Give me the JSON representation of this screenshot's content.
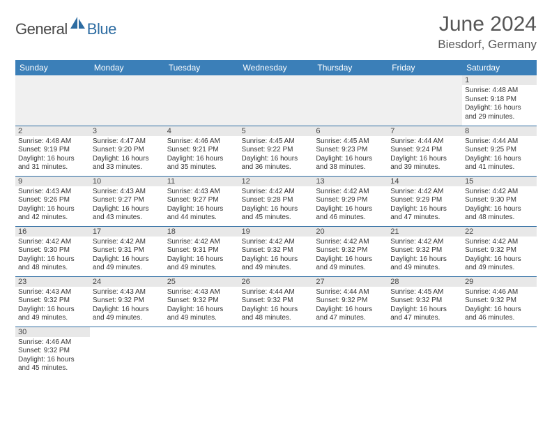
{
  "logo": {
    "text1": "General",
    "text2": "Blue",
    "icon_color": "#2d6ca2"
  },
  "header": {
    "month": "June 2024",
    "location": "Biesdorf, Germany"
  },
  "colors": {
    "header_bg": "#3b7fb8",
    "header_fg": "#ffffff",
    "cell_border": "#2d6ca2",
    "daynum_bg": "#e8e8e8"
  },
  "daynames": [
    "Sunday",
    "Monday",
    "Tuesday",
    "Wednesday",
    "Thursday",
    "Friday",
    "Saturday"
  ],
  "weeks": [
    [
      null,
      null,
      null,
      null,
      null,
      null,
      {
        "n": "1",
        "sunrise": "4:48 AM",
        "sunset": "9:18 PM",
        "dl_h": 16,
        "dl_m": 29
      }
    ],
    [
      {
        "n": "2",
        "sunrise": "4:48 AM",
        "sunset": "9:19 PM",
        "dl_h": 16,
        "dl_m": 31
      },
      {
        "n": "3",
        "sunrise": "4:47 AM",
        "sunset": "9:20 PM",
        "dl_h": 16,
        "dl_m": 33
      },
      {
        "n": "4",
        "sunrise": "4:46 AM",
        "sunset": "9:21 PM",
        "dl_h": 16,
        "dl_m": 35
      },
      {
        "n": "5",
        "sunrise": "4:45 AM",
        "sunset": "9:22 PM",
        "dl_h": 16,
        "dl_m": 36
      },
      {
        "n": "6",
        "sunrise": "4:45 AM",
        "sunset": "9:23 PM",
        "dl_h": 16,
        "dl_m": 38
      },
      {
        "n": "7",
        "sunrise": "4:44 AM",
        "sunset": "9:24 PM",
        "dl_h": 16,
        "dl_m": 39
      },
      {
        "n": "8",
        "sunrise": "4:44 AM",
        "sunset": "9:25 PM",
        "dl_h": 16,
        "dl_m": 41
      }
    ],
    [
      {
        "n": "9",
        "sunrise": "4:43 AM",
        "sunset": "9:26 PM",
        "dl_h": 16,
        "dl_m": 42
      },
      {
        "n": "10",
        "sunrise": "4:43 AM",
        "sunset": "9:27 PM",
        "dl_h": 16,
        "dl_m": 43
      },
      {
        "n": "11",
        "sunrise": "4:43 AM",
        "sunset": "9:27 PM",
        "dl_h": 16,
        "dl_m": 44
      },
      {
        "n": "12",
        "sunrise": "4:42 AM",
        "sunset": "9:28 PM",
        "dl_h": 16,
        "dl_m": 45
      },
      {
        "n": "13",
        "sunrise": "4:42 AM",
        "sunset": "9:29 PM",
        "dl_h": 16,
        "dl_m": 46
      },
      {
        "n": "14",
        "sunrise": "4:42 AM",
        "sunset": "9:29 PM",
        "dl_h": 16,
        "dl_m": 47
      },
      {
        "n": "15",
        "sunrise": "4:42 AM",
        "sunset": "9:30 PM",
        "dl_h": 16,
        "dl_m": 48
      }
    ],
    [
      {
        "n": "16",
        "sunrise": "4:42 AM",
        "sunset": "9:30 PM",
        "dl_h": 16,
        "dl_m": 48
      },
      {
        "n": "17",
        "sunrise": "4:42 AM",
        "sunset": "9:31 PM",
        "dl_h": 16,
        "dl_m": 49
      },
      {
        "n": "18",
        "sunrise": "4:42 AM",
        "sunset": "9:31 PM",
        "dl_h": 16,
        "dl_m": 49
      },
      {
        "n": "19",
        "sunrise": "4:42 AM",
        "sunset": "9:32 PM",
        "dl_h": 16,
        "dl_m": 49
      },
      {
        "n": "20",
        "sunrise": "4:42 AM",
        "sunset": "9:32 PM",
        "dl_h": 16,
        "dl_m": 49
      },
      {
        "n": "21",
        "sunrise": "4:42 AM",
        "sunset": "9:32 PM",
        "dl_h": 16,
        "dl_m": 49
      },
      {
        "n": "22",
        "sunrise": "4:42 AM",
        "sunset": "9:32 PM",
        "dl_h": 16,
        "dl_m": 49
      }
    ],
    [
      {
        "n": "23",
        "sunrise": "4:43 AM",
        "sunset": "9:32 PM",
        "dl_h": 16,
        "dl_m": 49
      },
      {
        "n": "24",
        "sunrise": "4:43 AM",
        "sunset": "9:32 PM",
        "dl_h": 16,
        "dl_m": 49
      },
      {
        "n": "25",
        "sunrise": "4:43 AM",
        "sunset": "9:32 PM",
        "dl_h": 16,
        "dl_m": 49
      },
      {
        "n": "26",
        "sunrise": "4:44 AM",
        "sunset": "9:32 PM",
        "dl_h": 16,
        "dl_m": 48
      },
      {
        "n": "27",
        "sunrise": "4:44 AM",
        "sunset": "9:32 PM",
        "dl_h": 16,
        "dl_m": 47
      },
      {
        "n": "28",
        "sunrise": "4:45 AM",
        "sunset": "9:32 PM",
        "dl_h": 16,
        "dl_m": 47
      },
      {
        "n": "29",
        "sunrise": "4:46 AM",
        "sunset": "9:32 PM",
        "dl_h": 16,
        "dl_m": 46
      }
    ],
    [
      {
        "n": "30",
        "sunrise": "4:46 AM",
        "sunset": "9:32 PM",
        "dl_h": 16,
        "dl_m": 45
      },
      null,
      null,
      null,
      null,
      null,
      null
    ]
  ],
  "labels": {
    "sunrise": "Sunrise:",
    "sunset": "Sunset:",
    "daylight": "Daylight:",
    "hours": "hours",
    "and": "and",
    "minutes": "minutes."
  }
}
